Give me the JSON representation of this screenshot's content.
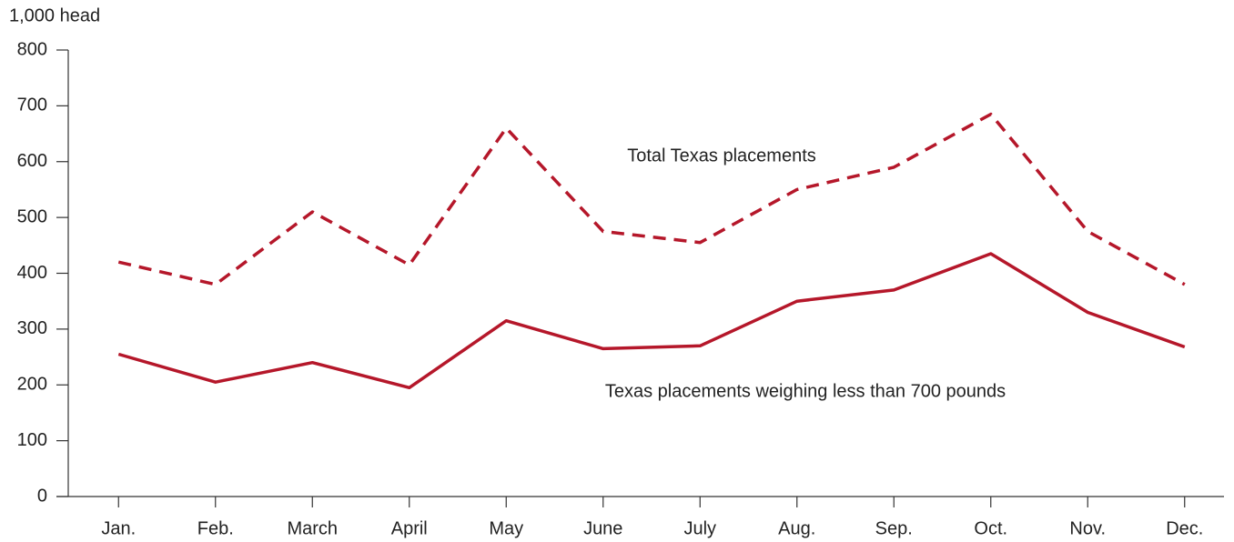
{
  "chart_data": {
    "type": "line",
    "y_axis_label": "1,000 head",
    "categories": [
      "Jan.",
      "Feb.",
      "March",
      "April",
      "May",
      "June",
      "July",
      "Aug.",
      "Sep.",
      "Oct.",
      "Nov.",
      "Dec."
    ],
    "series": [
      {
        "name": "Total Texas placements",
        "color": "#b5172a",
        "line_style": "dashed",
        "values": [
          420,
          380,
          510,
          415,
          660,
          475,
          455,
          550,
          590,
          685,
          475,
          380
        ]
      },
      {
        "name": "Texas placements weighing less than 700 pounds",
        "color": "#b5172a",
        "line_style": "solid",
        "values": [
          255,
          205,
          240,
          195,
          315,
          265,
          270,
          350,
          370,
          435,
          330,
          268
        ]
      }
    ],
    "ylim": [
      0,
      800
    ],
    "yticks": [
      0,
      100,
      200,
      300,
      400,
      500,
      600,
      700,
      800
    ],
    "grid": false
  }
}
